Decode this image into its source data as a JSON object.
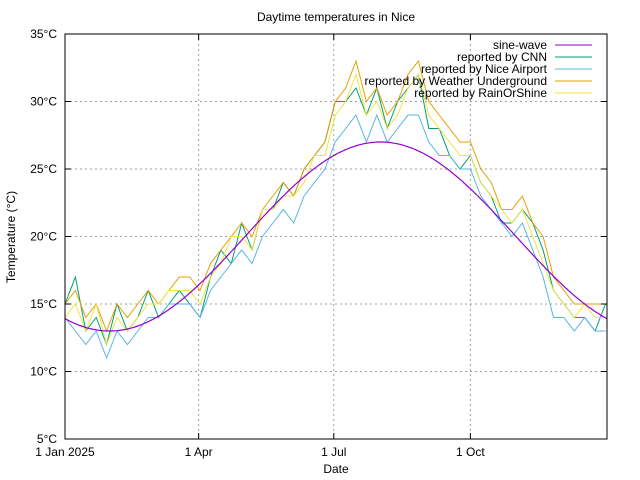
{
  "chart_data": {
    "type": "line",
    "title": "Daytime temperatures in Nice",
    "xlabel": "Date",
    "ylabel": "Temperature (°C)",
    "ylim": [
      5,
      35
    ],
    "y_ticks": [
      5,
      10,
      15,
      20,
      25,
      30,
      35
    ],
    "y_tick_suffix": "°C",
    "xlim": [
      "2025-01-01",
      "2026-01-01"
    ],
    "x_ticks": [
      {
        "date": "2025-01-01",
        "label": "1 Jan 2025"
      },
      {
        "date": "2025-04-01",
        "label": "1 Apr"
      },
      {
        "date": "2025-07-01",
        "label": "1 Jul"
      },
      {
        "date": "2025-10-01",
        "label": "1 Oct"
      }
    ],
    "grid": true,
    "legend": "top-right",
    "x": [
      "2025-01-01",
      "2025-01-08",
      "2025-01-15",
      "2025-01-22",
      "2025-01-29",
      "2025-02-05",
      "2025-02-12",
      "2025-02-19",
      "2025-02-26",
      "2025-03-05",
      "2025-03-12",
      "2025-03-19",
      "2025-03-26",
      "2025-04-02",
      "2025-04-09",
      "2025-04-16",
      "2025-04-23",
      "2025-04-30",
      "2025-05-07",
      "2025-05-14",
      "2025-05-21",
      "2025-05-28",
      "2025-06-04",
      "2025-06-11",
      "2025-06-18",
      "2025-06-25",
      "2025-07-02",
      "2025-07-09",
      "2025-07-16",
      "2025-07-23",
      "2025-07-30",
      "2025-08-06",
      "2025-08-13",
      "2025-08-20",
      "2025-08-27",
      "2025-09-03",
      "2025-09-10",
      "2025-09-17",
      "2025-09-24",
      "2025-10-01",
      "2025-10-08",
      "2025-10-15",
      "2025-10-22",
      "2025-10-29",
      "2025-11-05",
      "2025-11-12",
      "2025-11-19",
      "2025-11-26",
      "2025-12-03",
      "2025-12-10",
      "2025-12-17",
      "2025-12-24",
      "2025-12-31"
    ],
    "sine_wave": {
      "name": "sine-wave",
      "color": "#9400d3",
      "mean": 20,
      "amplitude": 7,
      "minimum_date": "2025-01-31"
    },
    "series": [
      {
        "name": "reported by CNN",
        "color": "#009e73",
        "values": [
          15,
          17,
          13,
          14,
          12,
          15,
          13,
          14,
          16,
          14,
          15,
          16,
          15,
          14,
          17,
          19,
          18,
          21,
          19,
          22,
          22,
          24,
          23,
          25,
          26,
          27,
          30,
          30,
          31,
          29,
          31,
          28,
          30,
          31,
          32,
          28,
          28,
          26,
          25,
          26,
          24,
          23,
          21,
          21,
          22,
          21,
          19,
          16,
          15,
          14,
          14,
          13,
          15
        ]
      },
      {
        "name": "reported by Nice Airport",
        "color": "#56b4e9",
        "values": [
          14,
          13,
          12,
          13,
          11,
          13,
          12,
          13,
          14,
          14,
          15,
          15,
          15,
          14,
          16,
          17,
          18,
          19,
          18,
          20,
          21,
          22,
          21,
          23,
          24,
          25,
          27,
          28,
          29,
          27,
          29,
          27,
          28,
          29,
          29,
          27,
          26,
          26,
          25,
          25,
          23,
          22,
          21,
          20,
          21,
          19,
          17,
          14,
          14,
          13,
          14,
          13,
          13
        ]
      },
      {
        "name": "reported by Weather Underground",
        "color": "#e69f00",
        "values": [
          15,
          16,
          14,
          15,
          13,
          15,
          14,
          15,
          16,
          15,
          16,
          17,
          17,
          16,
          18,
          19,
          20,
          21,
          20,
          22,
          23,
          24,
          23,
          25,
          26,
          27,
          30,
          31,
          33,
          30,
          31,
          29,
          30,
          32,
          33,
          30,
          29,
          28,
          27,
          27,
          25,
          24,
          22,
          22,
          23,
          21,
          20,
          17,
          16,
          15,
          15,
          15,
          15
        ]
      },
      {
        "name": "reported by RainOrShine",
        "color": "#f0e442",
        "values": [
          14,
          15,
          13,
          15,
          12,
          14,
          13,
          14,
          15,
          15,
          16,
          16,
          16,
          15,
          17,
          18,
          20,
          20,
          19,
          22,
          22,
          23,
          23,
          24,
          26,
          26,
          29,
          30,
          32,
          29,
          30,
          28,
          29,
          31,
          32,
          29,
          28,
          27,
          26,
          26,
          24,
          23,
          22,
          21,
          22,
          20,
          18,
          16,
          15,
          14,
          15,
          14,
          14
        ]
      }
    ]
  }
}
